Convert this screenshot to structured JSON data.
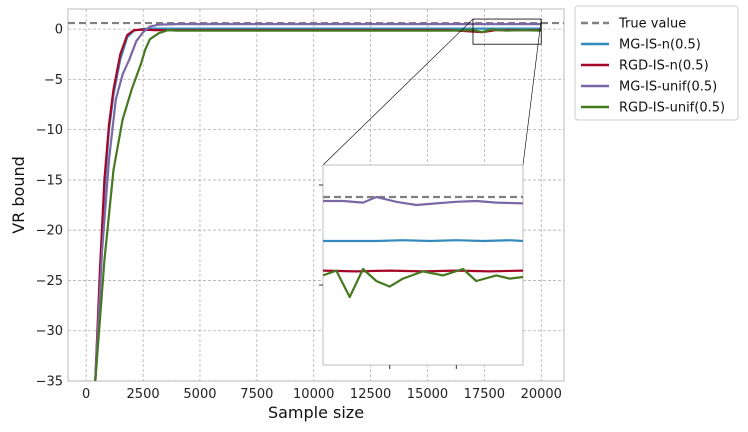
{
  "chart_data": {
    "type": "line",
    "xlabel": "Sample size",
    "ylabel": "VR bound",
    "xlim": [
      -800,
      21000
    ],
    "ylim": [
      -35,
      2
    ],
    "xticks": [
      0,
      2500,
      5000,
      7500,
      10000,
      12500,
      15000,
      17500,
      20000
    ],
    "xtick_labels": [
      "0",
      "2500",
      "5000",
      "7500",
      "10000",
      "12500",
      "15000",
      "17500",
      "20000"
    ],
    "yticks": [
      0,
      -5,
      -10,
      -15,
      -20,
      -25,
      -30,
      -35
    ],
    "ytick_labels": [
      "0",
      "−5",
      "−10",
      "−15",
      "−20",
      "−25",
      "−30",
      "−35"
    ],
    "grid": true,
    "legend_position": "outside-right",
    "reference_line": {
      "name": "True value",
      "y": 0.6,
      "color": "#808080",
      "style": "dashed"
    },
    "series": [
      {
        "name": "MG-IS-n(0.5)",
        "color": "#348ABD",
        "x": [
          400,
          600,
          800,
          1000,
          1200,
          1500,
          1800,
          2100,
          2500,
          3000,
          4000,
          6000,
          8000,
          10000,
          12000,
          14000,
          16000,
          18000,
          20000
        ],
        "y": [
          -35,
          -25,
          -16,
          -10,
          -6.5,
          -3,
          -0.8,
          -0.15,
          0.02,
          0.05,
          0.05,
          0.05,
          0.05,
          0.05,
          0.05,
          0.05,
          0.05,
          0.05,
          0.05
        ]
      },
      {
        "name": "RGD-IS-n(0.5)",
        "color": "#A60628",
        "x": [
          400,
          600,
          800,
          1000,
          1200,
          1500,
          1800,
          2100,
          2500,
          3000,
          4000,
          6000,
          8000,
          10000,
          12000,
          14000,
          16000,
          17400,
          18000,
          20000
        ],
        "y": [
          -35,
          -24,
          -15,
          -9.5,
          -6,
          -2.5,
          -0.6,
          -0.1,
          -0.05,
          -0.1,
          -0.1,
          -0.1,
          -0.1,
          -0.1,
          -0.1,
          -0.1,
          -0.1,
          -0.3,
          -0.1,
          -0.1
        ]
      },
      {
        "name": "MG-IS-unif(0.5)",
        "color": "#7A68A6",
        "x": [
          400,
          700,
          1000,
          1300,
          1600,
          1900,
          2200,
          2500,
          2800,
          3200,
          4000,
          6000,
          8000,
          10000,
          12000,
          14000,
          16000,
          18000,
          20000
        ],
        "y": [
          -35,
          -22,
          -13,
          -7,
          -4.5,
          -3,
          -1.2,
          -0.3,
          0.25,
          0.45,
          0.5,
          0.5,
          0.5,
          0.5,
          0.5,
          0.5,
          0.5,
          0.5,
          0.5
        ]
      },
      {
        "name": "RGD-IS-unif(0.5)",
        "color": "#467821",
        "x": [
          400,
          800,
          1200,
          1600,
          2000,
          2400,
          2600,
          2800,
          3200,
          3600,
          4000,
          5000,
          6000,
          8000,
          10000,
          12000,
          14000,
          16000,
          17000,
          17400,
          17800,
          18500,
          19200,
          20000
        ],
        "y": [
          -35,
          -23,
          -14,
          -9,
          -6,
          -3.5,
          -2,
          -1,
          -0.4,
          -0.1,
          -0.15,
          -0.15,
          -0.15,
          -0.15,
          -0.15,
          -0.15,
          -0.15,
          -0.15,
          -0.1,
          -0.3,
          -0.05,
          -0.15,
          -0.1,
          -0.15
        ]
      }
    ],
    "inset": {
      "xlim": [
        17000,
        20000
      ],
      "ylim": [
        -1.5,
        1.0
      ],
      "ref_y": 0.6,
      "series": [
        {
          "x": [
            17000,
            17300,
            17600,
            17800,
            18100,
            18400,
            18700,
            19000,
            19300,
            19600,
            20000
          ],
          "y": [
            0.55,
            0.55,
            0.53,
            0.6,
            0.54,
            0.5,
            0.52,
            0.54,
            0.55,
            0.53,
            0.52
          ]
        },
        {
          "x": [
            17000,
            17400,
            17800,
            18200,
            18600,
            19000,
            19400,
            19800,
            20000
          ],
          "y": [
            0.05,
            0.05,
            0.05,
            0.06,
            0.05,
            0.06,
            0.05,
            0.06,
            0.05
          ]
        },
        {
          "x": [
            17000,
            17500,
            18000,
            18500,
            19000,
            19500,
            20000
          ],
          "y": [
            -0.32,
            -0.33,
            -0.32,
            -0.33,
            -0.32,
            -0.33,
            -0.32
          ]
        },
        {
          "x": [
            17000,
            17200,
            17400,
            17600,
            17800,
            18000,
            18200,
            18500,
            18800,
            19100,
            19300,
            19600,
            19800,
            20000
          ],
          "y": [
            -0.38,
            -0.32,
            -0.65,
            -0.3,
            -0.45,
            -0.52,
            -0.42,
            -0.33,
            -0.38,
            -0.3,
            -0.45,
            -0.38,
            -0.42,
            -0.4
          ]
        }
      ]
    }
  }
}
